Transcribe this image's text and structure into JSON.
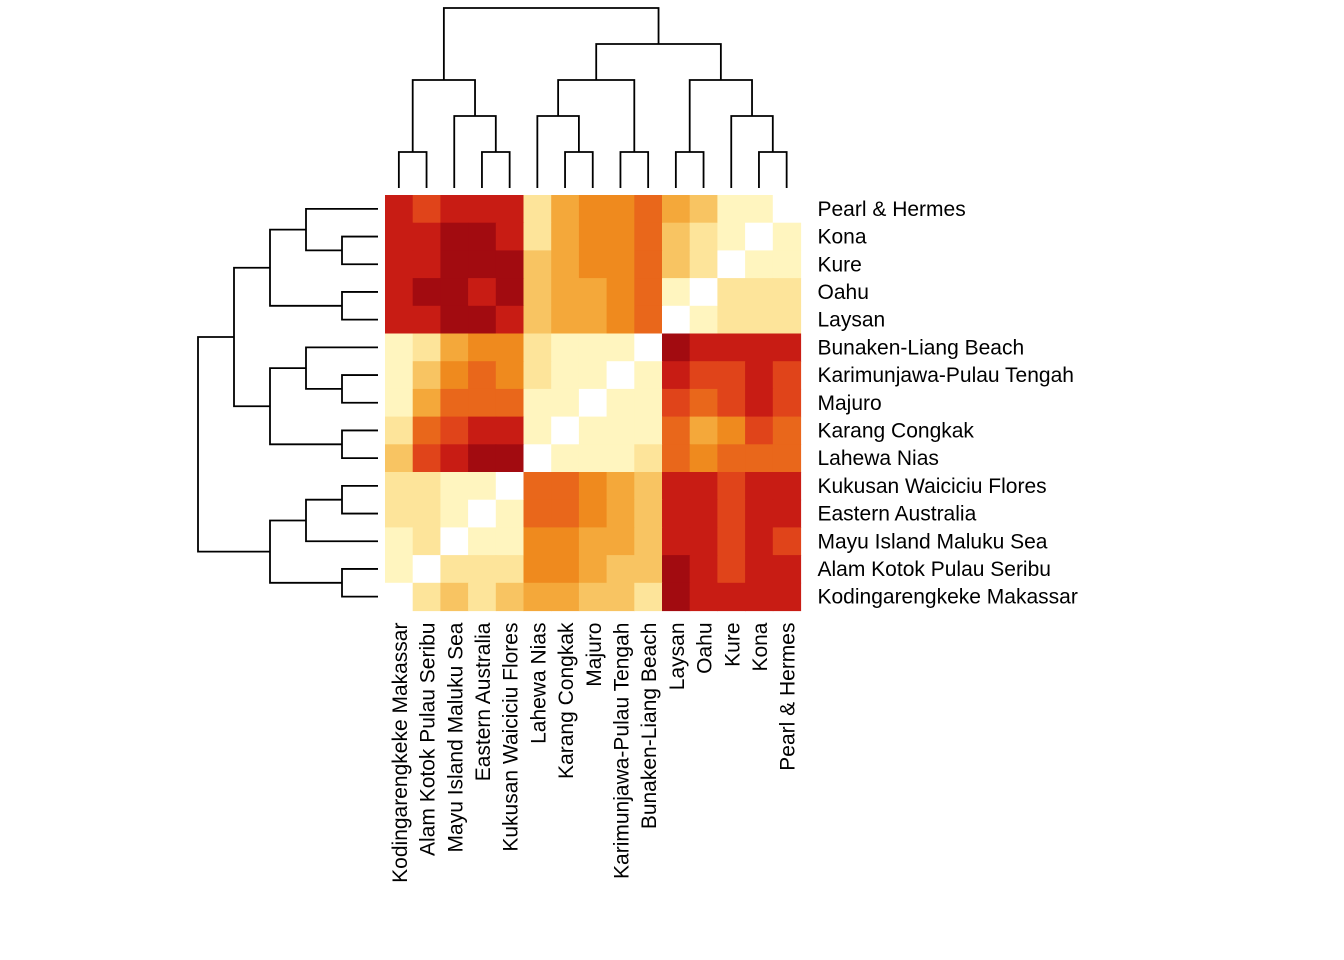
{
  "chart_data": {
    "type": "heatmap",
    "title": "",
    "row_labels": [
      "Pearl & Hermes",
      "Kona",
      "Kure",
      "Oahu",
      "Laysan",
      "Bunaken-Liang Beach",
      "Karimunjawa-Pulau Tengah",
      "Majuro",
      "Karang Congkak",
      "Lahewa Nias",
      "Kukusan Waiciciu Flores",
      "Eastern Australia",
      "Mayu Island Maluku Sea",
      "Alam Kotok Pulau Seribu",
      "Kodingarengkeke Makassar"
    ],
    "col_labels": [
      "Kodingarengkeke Makassar",
      "Alam Kotok Pulau Seribu",
      "Mayu Island Maluku Sea",
      "Eastern Australia",
      "Kukusan Waiciciu Flores",
      "Lahewa Nias",
      "Karang Congkak",
      "Majuro",
      "Karimunjawa-Pulau Tengah",
      "Bunaken-Liang Beach",
      "Laysan",
      "Oahu",
      "Kure",
      "Kona",
      "Pearl & Hermes"
    ],
    "value_scale": [
      0,
      10
    ],
    "values": [
      [
        8,
        7,
        8,
        8,
        8,
        2,
        4,
        5,
        5,
        6,
        4,
        3,
        1,
        1,
        0
      ],
      [
        8,
        8,
        9,
        9,
        8,
        2,
        4,
        5,
        5,
        6,
        3,
        2,
        1,
        0,
        1
      ],
      [
        8,
        8,
        9,
        9,
        9,
        3,
        4,
        5,
        5,
        6,
        3,
        2,
        0,
        1,
        1
      ],
      [
        8,
        9,
        9,
        8,
        9,
        3,
        4,
        4,
        5,
        6,
        1,
        0,
        2,
        2,
        2
      ],
      [
        8,
        8,
        9,
        9,
        8,
        3,
        4,
        4,
        5,
        6,
        0,
        1,
        2,
        2,
        2
      ],
      [
        1,
        2,
        4,
        5,
        5,
        2,
        1,
        1,
        1,
        0,
        9,
        8,
        8,
        8,
        8
      ],
      [
        1,
        3,
        5,
        6,
        5,
        2,
        1,
        1,
        0,
        1,
        8,
        7,
        7,
        8,
        7
      ],
      [
        1,
        4,
        6,
        6,
        6,
        1,
        1,
        0,
        1,
        1,
        7,
        6,
        7,
        8,
        7
      ],
      [
        2,
        6,
        7,
        8,
        8,
        1,
        0,
        1,
        1,
        1,
        6,
        4,
        5,
        7,
        6
      ],
      [
        3,
        7,
        8,
        9,
        9,
        0,
        1,
        1,
        1,
        2,
        6,
        5,
        6,
        6,
        6
      ],
      [
        2,
        2,
        1,
        1,
        0,
        6,
        6,
        5,
        4,
        3,
        8,
        8,
        7,
        8,
        8
      ],
      [
        2,
        2,
        1,
        0,
        1,
        6,
        6,
        5,
        4,
        3,
        8,
        8,
        7,
        8,
        8
      ],
      [
        1,
        2,
        0,
        1,
        1,
        5,
        5,
        4,
        4,
        3,
        8,
        8,
        7,
        8,
        7
      ],
      [
        1,
        0,
        2,
        2,
        2,
        5,
        5,
        4,
        3,
        3,
        9,
        8,
        7,
        8,
        8
      ],
      [
        0,
        2,
        3,
        2,
        3,
        4,
        4,
        3,
        3,
        2,
        9,
        8,
        8,
        8,
        8
      ]
    ],
    "row_dendrogram": "hierarchical clustering tree, left side",
    "col_dendrogram": "hierarchical clustering tree, top side",
    "colors": {
      "low": "#ffffff",
      "scale": [
        "#ffffff",
        "#fff5bf",
        "#fde49a",
        "#f8c462",
        "#f4a83a",
        "#ef8a1e",
        "#e9671b",
        "#e0441a",
        "#c81c14",
        "#a20b10",
        "#6d0010"
      ]
    }
  }
}
